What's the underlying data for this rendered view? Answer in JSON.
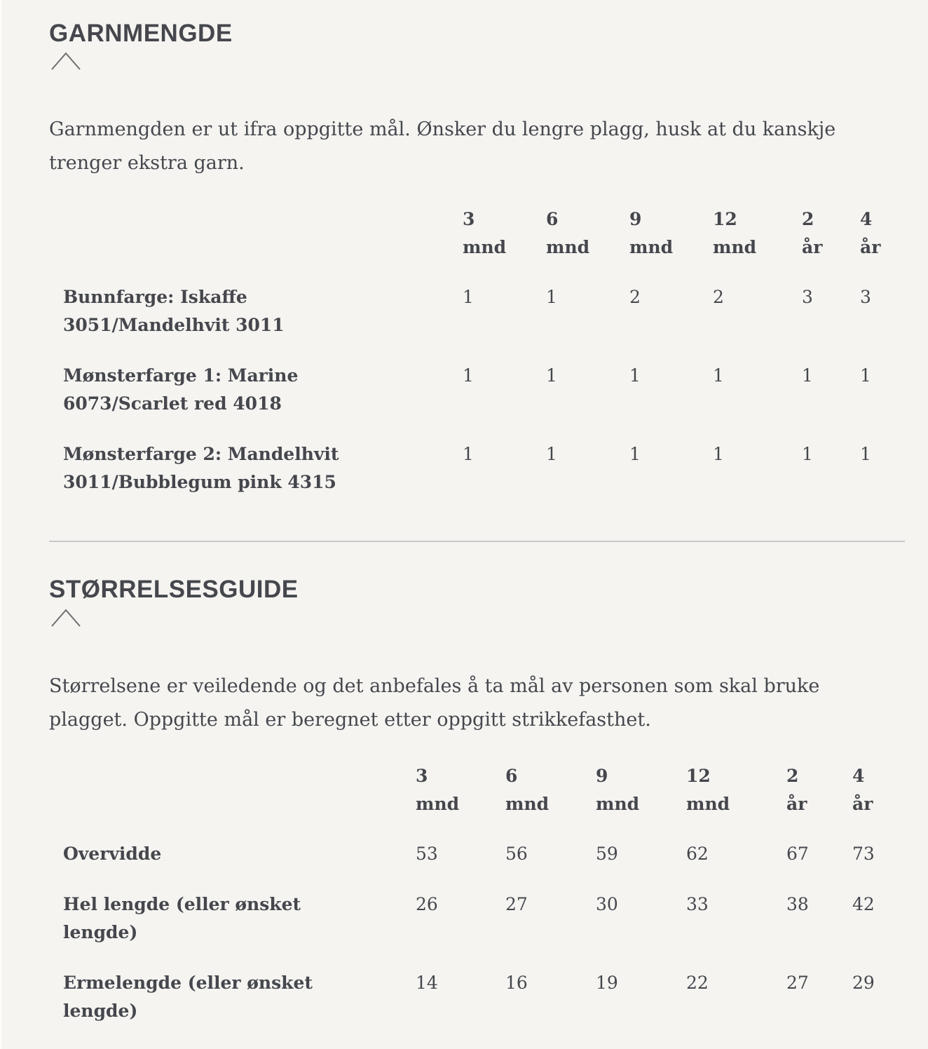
{
  "yarn": {
    "title": "GARNMENGDE",
    "toggle_icon": "chevron-up-icon",
    "description": "Garnmengden er ut ifra oppgitte mål. Ønsker du lengre plagg, husk at du kanskje trenger ekstra garn.",
    "sizes": [
      [
        "3",
        "mnd"
      ],
      [
        "6",
        "mnd"
      ],
      [
        "9",
        "mnd"
      ],
      [
        "12",
        "mnd"
      ],
      [
        "2",
        "år"
      ],
      [
        "4",
        "år"
      ]
    ],
    "rows": [
      {
        "label": [
          "Bunnfarge: Iskaffe",
          "3051/Mandelhvit 3011"
        ],
        "values": [
          "1",
          "1",
          "2",
          "2",
          "3",
          "3"
        ]
      },
      {
        "label": [
          "Mønsterfarge 1: Marine",
          "6073/Scarlet red 4018"
        ],
        "values": [
          "1",
          "1",
          "1",
          "1",
          "1",
          "1"
        ]
      },
      {
        "label": [
          "Mønsterfarge 2: Mandelhvit",
          "3011/Bubblegum pink 4315"
        ],
        "values": [
          "1",
          "1",
          "1",
          "1",
          "1",
          "1"
        ]
      }
    ]
  },
  "size_guide": {
    "title": "STØRRELSESGUIDE",
    "toggle_icon": "chevron-up-icon",
    "description": "Størrelsene er veiledende og det anbefales å ta mål av personen som skal bruke plagget. Oppgitte mål er beregnet etter oppgitt strikkefasthet.",
    "sizes": [
      [
        "3",
        "mnd"
      ],
      [
        "6",
        "mnd"
      ],
      [
        "9",
        "mnd"
      ],
      [
        "12",
        "mnd"
      ],
      [
        "2",
        "år"
      ],
      [
        "4",
        "år"
      ]
    ],
    "rows": [
      {
        "label": [
          "Overvidde"
        ],
        "values": [
          "53",
          "56",
          "59",
          "62",
          "67",
          "73"
        ]
      },
      {
        "label": [
          "Hel lengde (eller ønsket",
          "lengde)"
        ],
        "values": [
          "26",
          "27",
          "30",
          "33",
          "38",
          "42"
        ]
      },
      {
        "label": [
          "Ermelengde (eller ønsket",
          "lengde)"
        ],
        "values": [
          "14",
          "16",
          "19",
          "22",
          "27",
          "29"
        ]
      }
    ]
  }
}
